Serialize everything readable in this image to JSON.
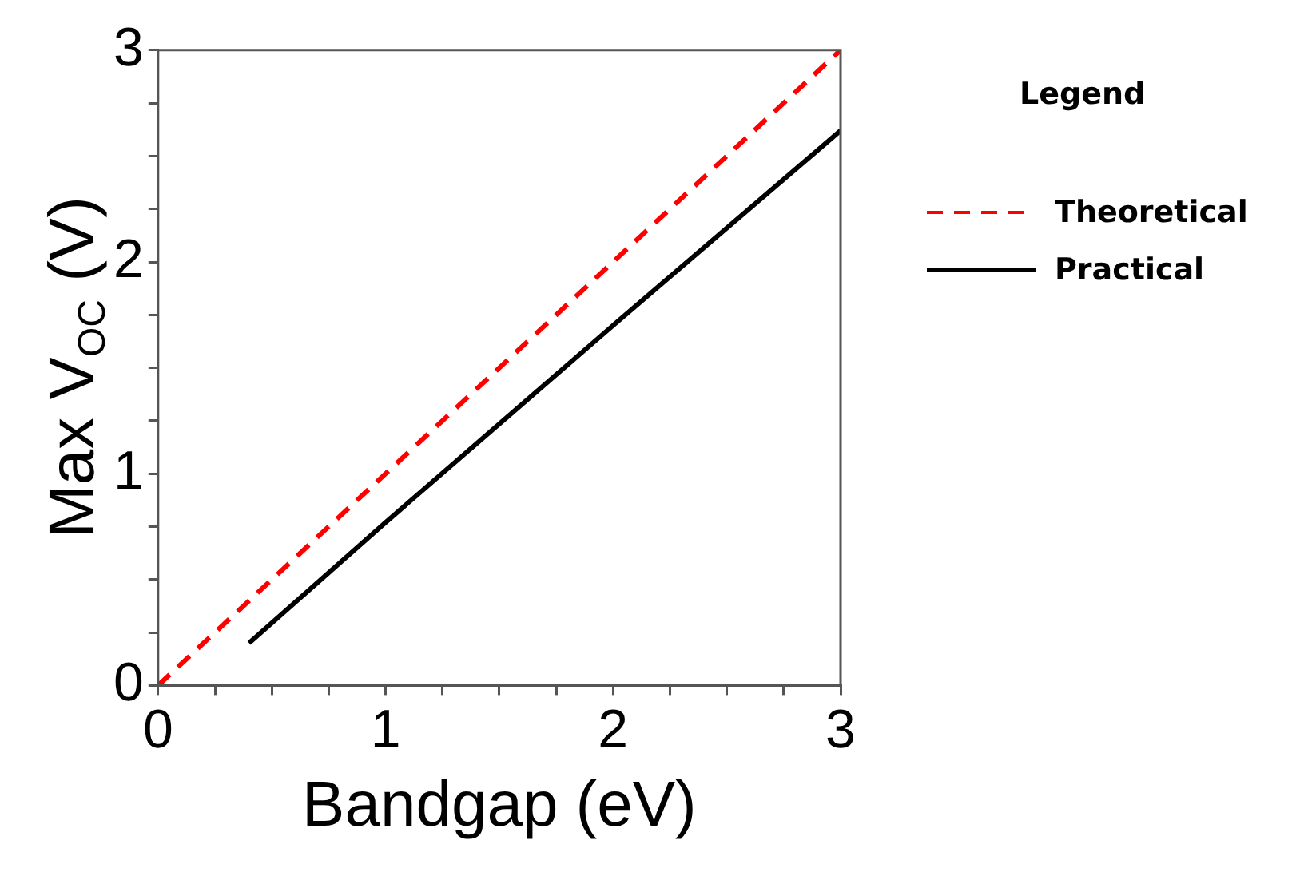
{
  "chart_data": {
    "type": "line",
    "xlabel": "Bandgap (eV)",
    "ylabel": "Max V$_{OC}$ (V)",
    "legend_title": "Legend",
    "legend": "right",
    "grid": false,
    "marker": "none",
    "xlim": [
      0,
      3
    ],
    "ylim": [
      0,
      3
    ],
    "xticks": [
      0,
      {
        "value": 0.25,
        "label": null
      },
      {
        "value": 0.5,
        "label": null
      },
      {
        "value": 0.75,
        "label": null
      },
      1,
      {
        "value": 1.25,
        "label": null
      },
      {
        "value": 1.5,
        "label": null
      },
      {
        "value": 1.75,
        "label": null
      },
      2,
      {
        "value": 2.25,
        "label": null
      },
      {
        "value": 2.5,
        "label": null
      },
      {
        "value": 2.75,
        "label": null
      },
      3
    ],
    "yticks": [
      0,
      {
        "value": 0.25,
        "label": null
      },
      {
        "value": 0.5,
        "label": null
      },
      {
        "value": 0.75,
        "label": null
      },
      1,
      {
        "value": 1.25,
        "label": null
      },
      {
        "value": 1.5,
        "label": null
      },
      {
        "value": 1.75,
        "label": null
      },
      2,
      {
        "value": 2.25,
        "label": null
      },
      {
        "value": 2.5,
        "label": null
      },
      {
        "value": 2.75,
        "label": null
      },
      3
    ],
    "series": [
      {
        "name": "Theoretical",
        "color": "#ff0000",
        "line_style": "dashed",
        "x": [
          0,
          3
        ],
        "values": [
          0,
          3
        ]
      },
      {
        "name": "Practical",
        "color": "#000000",
        "line_style": "solid",
        "x": [
          0.4,
          1,
          2,
          3
        ],
        "values": [
          0.2,
          0.77,
          1.7,
          2.62
        ]
      }
    ]
  }
}
